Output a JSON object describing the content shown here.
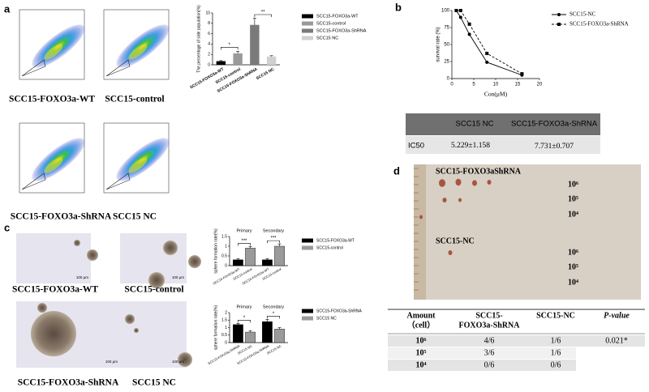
{
  "panel_labels": [
    "a",
    "b",
    "c",
    "d"
  ],
  "chart_data": [
    {
      "type": "bar",
      "ylabel": "The percentage of side population(%)",
      "categories": [
        "SCC15-FOXO3a-WT",
        "SCC15-control",
        "SCC15-FOXO3a-ShRNA",
        "SCC15 NC"
      ],
      "values": [
        0.7,
        2.2,
        7.7,
        1.6
      ],
      "errors": [
        0.1,
        0.4,
        1.3,
        0.15
      ],
      "colors": [
        "#000000",
        "#9a9a9a",
        "#7a7a7a",
        "#d0d0d0"
      ],
      "ylim": [
        0,
        10
      ],
      "yticks": [
        0,
        2,
        4,
        6,
        8,
        10
      ],
      "annotations": [
        "*",
        "**"
      ],
      "legend": "right"
    },
    {
      "type": "line",
      "ylabel": "survival rate (%)",
      "xlabel": "Con(μM)",
      "x": [
        1,
        2,
        4,
        8,
        16
      ],
      "series": [
        {
          "name": "SCC15-NC",
          "color": "#000000",
          "line_style": "solid",
          "marker": "circle",
          "values": [
            100,
            90,
            65,
            24,
            5
          ]
        },
        {
          "name": "SCC15-FOXO3a-ShRNA",
          "color": "#000000",
          "line_style": "dashed",
          "marker": "square",
          "values": [
            100,
            100,
            80,
            37,
            7
          ]
        }
      ],
      "xlim": [
        0,
        20
      ],
      "xticks": [
        0,
        5,
        10,
        15,
        20
      ],
      "ylim": [
        0,
        100
      ],
      "yticks": [
        0,
        25,
        50,
        75,
        100
      ],
      "legend": "right"
    },
    {
      "type": "bar",
      "ylabel": "sphere formation rate(%)",
      "categories": [
        "Primary",
        "Secondary"
      ],
      "series": [
        {
          "name": "SCC15-FOXO3a-WT",
          "color": "#000000",
          "values": [
            0.3,
            0.3
          ],
          "errors": [
            0.05,
            0.06
          ]
        },
        {
          "name": "SCC15-control",
          "color": "#9a9a9a",
          "values": [
            0.9,
            1.0
          ],
          "errors": [
            0.08,
            0.12
          ]
        }
      ],
      "ylim": [
        0,
        1.5
      ],
      "yticks": [
        0,
        0.5,
        1,
        1.5
      ],
      "annotations": [
        "***",
        "***"
      ],
      "legend": "right"
    },
    {
      "type": "bar",
      "ylabel": "sphere formation rate(%)",
      "categories": [
        "Primary",
        "Secondary"
      ],
      "series": [
        {
          "name": "SCC15-FOXO3a-ShRNA",
          "color": "#000000",
          "values": [
            1.2,
            1.4
          ],
          "errors": [
            0.08,
            0.15
          ]
        },
        {
          "name": "SCC15 NC",
          "color": "#9a9a9a",
          "values": [
            0.7,
            0.9
          ],
          "errors": [
            0.1,
            0.1
          ]
        }
      ],
      "ylim": [
        0,
        2
      ],
      "yticks": [
        0,
        0.5,
        1,
        1.5,
        2
      ],
      "annotations": [
        "*",
        "*"
      ],
      "legend": "right"
    }
  ],
  "flow_captions": [
    "SCC15-FOXO3a-WT",
    "SCC15-control",
    "SCC15-FOXO3a-ShRNA",
    "SCC15 NC"
  ],
  "sphere_captions": [
    "SCC15-FOXO3a-WT",
    "SCC15-control",
    "SCC15-FOXO3a-ShRNA",
    "SCC15 NC"
  ],
  "scale_bar": "100 μm",
  "tumor_photo": {
    "group_labels": [
      "SCC15-FOXO3aShRNA",
      "SCC15-NC"
    ],
    "dose_labels": [
      "10⁶",
      "10⁵",
      "10⁴"
    ]
  },
  "ic50_table": {
    "header": [
      "SCC15 NC",
      "SCC15-FOXO3a-ShRNA"
    ],
    "rows": [
      [
        "IC50",
        "5.229±1.158",
        "7.731±0.707"
      ]
    ]
  },
  "tumor_table": {
    "header": [
      [
        "Amount",
        "（cell）"
      ],
      [
        "SCC15-",
        "FOXO3a-ShRNA"
      ],
      [
        "SCC15-NC"
      ],
      [
        "P-value"
      ]
    ],
    "rows": [
      [
        "10⁶",
        "4/6",
        "1/6",
        "0.021*"
      ],
      [
        "10⁵",
        "3/6",
        "1/6"
      ],
      [
        "10⁴",
        "0/6",
        "0/6"
      ]
    ]
  }
}
